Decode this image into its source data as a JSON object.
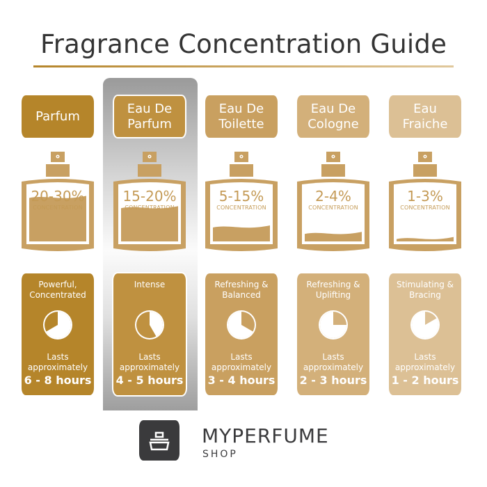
{
  "title": "Fragrance Concentration Guide",
  "concentration_label": "CONCENTRATION",
  "lasts_label": "Lasts approximately",
  "columns": [
    {
      "name": "Parfum",
      "percent": "20-30%",
      "description": "Powerful, Concentrated",
      "duration": "6 - 8 hours",
      "color": "#b5852a",
      "liquid_level": 0.36,
      "pie_white_arc_hours": [
        0,
        8
      ],
      "highlighted": false
    },
    {
      "name": "Eau De Parfum",
      "percent": "15-20%",
      "description": "Intense",
      "duration": "4 - 5 hours",
      "color": "#bf9140",
      "liquid_level": 0.28,
      "pie_white_arc_hours": [
        0,
        5
      ],
      "highlighted": true
    },
    {
      "name": "Eau De Toilette",
      "percent": "5-15%",
      "description": "Refreshing & Balanced",
      "duration": "3 - 4 hours",
      "color": "#c9a060",
      "liquid_level": 0.13,
      "pie_white_arc_hours": [
        4,
        12
      ],
      "highlighted": false
    },
    {
      "name": "Eau De Cologne",
      "percent": "2-4%",
      "description": "Refreshing & Uplifting",
      "duration": "2 - 3 hours",
      "color": "#d3b07a",
      "liquid_level": 0.08,
      "pie_white_arc_hours": [
        3,
        12
      ],
      "highlighted": false
    },
    {
      "name": "Eau Fraiche",
      "percent": "1-3%",
      "description": "Stimulating & Bracing",
      "duration": "1 - 2 hours",
      "color": "#dcc095",
      "liquid_level": 0.04,
      "pie_white_arc_hours": [
        2,
        12
      ],
      "highlighted": false
    }
  ],
  "bottle_color": "#c8a062",
  "brand": {
    "name": "MYPERFUME",
    "sub": "SHOP",
    "color": "#3a3a3c"
  }
}
